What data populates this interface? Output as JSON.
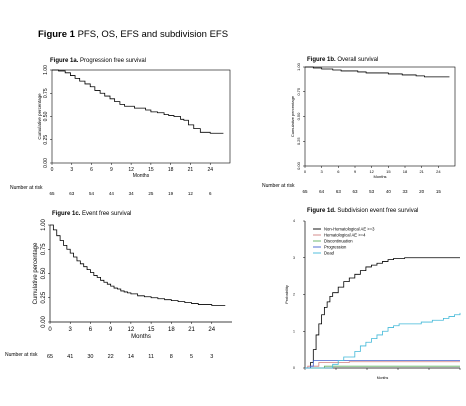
{
  "figure": {
    "prefix": "Figure 1",
    "title": "PFS, OS, EFS and subdivision EFS"
  },
  "chart_data": [
    {
      "id": "a",
      "type": "line",
      "title_prefix": "Figure 1a.",
      "title": "Progression free survival",
      "xlabel": "Months",
      "ylabel": "Cumulative percentage",
      "xlim": [
        0,
        27
      ],
      "ylim": [
        0,
        1
      ],
      "xticks": [
        "0",
        "3",
        "6",
        "9",
        "12",
        "15",
        "18",
        "21",
        "24"
      ],
      "yticks": [
        "0.00",
        "0.25",
        "0.50",
        "0.75",
        "1.00"
      ],
      "series": [
        {
          "x": [
            0,
            1,
            2,
            2.8,
            3.5,
            4.2,
            5,
            5.8,
            6.5,
            7.3,
            8,
            8.8,
            9.5,
            10.3,
            11,
            12.5,
            13.5,
            14.2,
            15,
            16,
            17,
            17.7,
            18.5,
            19.5,
            20,
            20.7,
            21.5,
            22.5,
            24,
            26
          ],
          "y": [
            1,
            0.99,
            0.97,
            0.94,
            0.91,
            0.88,
            0.85,
            0.82,
            0.78,
            0.75,
            0.72,
            0.69,
            0.66,
            0.63,
            0.61,
            0.59,
            0.59,
            0.57,
            0.55,
            0.54,
            0.52,
            0.51,
            0.5,
            0.47,
            0.46,
            0.41,
            0.37,
            0.33,
            0.32,
            0.32
          ]
        }
      ],
      "risk_label": "Number at risk",
      "risk": [
        "65",
        "63",
        "54",
        "44",
        "34",
        "25",
        "19",
        "12",
        "6"
      ]
    },
    {
      "id": "b",
      "type": "line",
      "title_prefix": "Figure 1b.",
      "title": "Overall survival",
      "xlabel": "Months",
      "ylabel": "Cumulative percentage",
      "xlim": [
        0,
        27
      ],
      "ylim": [
        0,
        1
      ],
      "xticks": [
        "0",
        "3",
        "6",
        "9",
        "12",
        "15",
        "18",
        "21",
        "24"
      ],
      "yticks": [
        "0.00",
        "0.25",
        "0.50",
        "0.75",
        "1.00"
      ],
      "series": [
        {
          "x": [
            0,
            1.5,
            3,
            5,
            6.5,
            8,
            9.5,
            11,
            13,
            15,
            16,
            17.5,
            18.5,
            20,
            21.5,
            23,
            24,
            26
          ],
          "y": [
            1,
            0.99,
            0.98,
            0.97,
            0.96,
            0.96,
            0.95,
            0.94,
            0.94,
            0.93,
            0.93,
            0.92,
            0.92,
            0.91,
            0.9,
            0.9,
            0.9,
            0.9
          ]
        }
      ],
      "risk_label": "Number at risk",
      "risk": [
        "65",
        "64",
        "63",
        "63",
        "53",
        "40",
        "33",
        "20",
        "15"
      ]
    },
    {
      "id": "c",
      "type": "line",
      "title_prefix": "Figure 1c.",
      "title": "Event free survival",
      "xlabel": "Months",
      "ylabel": "Cumulative percentage",
      "xlim": [
        0,
        27
      ],
      "ylim": [
        0,
        1
      ],
      "xticks": [
        "0",
        "3",
        "6",
        "9",
        "12",
        "15",
        "18",
        "21",
        "24"
      ],
      "yticks": [
        "0.00",
        "0.25",
        "0.50",
        "0.75",
        "1.00"
      ],
      "series": [
        {
          "x": [
            0,
            0.5,
            1,
            1.5,
            2,
            2.5,
            3,
            3.5,
            4,
            4.5,
            5,
            5.5,
            6,
            6.5,
            7,
            7.5,
            8,
            8.5,
            9,
            9.5,
            10,
            10.5,
            11,
            11.5,
            12,
            13,
            14,
            15,
            16,
            17,
            18,
            19,
            20,
            21,
            22,
            24,
            26
          ],
          "y": [
            1,
            0.95,
            0.89,
            0.84,
            0.79,
            0.75,
            0.71,
            0.67,
            0.63,
            0.6,
            0.57,
            0.54,
            0.51,
            0.48,
            0.46,
            0.43,
            0.41,
            0.39,
            0.37,
            0.35,
            0.34,
            0.32,
            0.31,
            0.3,
            0.29,
            0.27,
            0.26,
            0.25,
            0.24,
            0.23,
            0.22,
            0.21,
            0.2,
            0.19,
            0.18,
            0.17,
            0.17
          ]
        }
      ],
      "risk_label": "Number at risk",
      "risk": [
        "65",
        "41",
        "30",
        "22",
        "14",
        "11",
        "8",
        "5",
        "3"
      ]
    },
    {
      "id": "d",
      "type": "line",
      "title_prefix": "Figure 1d.",
      "title": "Subdivision event free survival",
      "xlabel": "Months",
      "ylabel": "Probability",
      "xlim": [
        0,
        28
      ],
      "ylim": [
        0,
        4
      ],
      "yticks": [
        "0",
        "1",
        "2",
        "3",
        "4"
      ],
      "xticks_count": 6,
      "series": [
        {
          "name": "Non-Hematological AE >=3",
          "color": "#000000",
          "x": [
            0,
            1,
            1.5,
            2,
            2.5,
            3,
            3.5,
            4,
            4.5,
            5,
            6,
            7,
            8,
            9,
            10,
            11,
            12,
            13,
            14,
            15,
            16,
            18,
            20,
            22,
            24,
            28
          ],
          "y": [
            0,
            0.15,
            0.5,
            0.9,
            1.2,
            1.45,
            1.65,
            1.8,
            1.95,
            2.05,
            2.2,
            2.35,
            2.45,
            2.55,
            2.65,
            2.75,
            2.8,
            2.85,
            2.9,
            2.95,
            2.98,
            3.0,
            3.0,
            3.0,
            3.0,
            3.0
          ]
        },
        {
          "name": "Hematological AE >=4",
          "color": "#d08080",
          "x": [
            0,
            0.5,
            2,
            2.5,
            8,
            28
          ],
          "y": [
            0,
            0.05,
            0.05,
            0.15,
            0.17,
            0.17
          ]
        },
        {
          "name": "Discontinuation",
          "color": "#60b060",
          "x": [
            0,
            3,
            3.5,
            28
          ],
          "y": [
            0,
            0,
            0.05,
            0.05
          ]
        },
        {
          "name": "Progression",
          "color": "#4060d0",
          "x": [
            0,
            1,
            1.5,
            28
          ],
          "y": [
            0,
            0.05,
            0.2,
            0.2
          ]
        },
        {
          "name": "Dead",
          "color": "#40b8d8",
          "x": [
            0,
            5,
            6,
            7,
            9,
            10,
            11,
            12,
            13,
            14,
            15,
            16,
            17,
            18,
            19,
            20,
            21,
            22,
            23,
            24,
            25,
            26,
            27,
            28
          ],
          "y": [
            0,
            0.1,
            0.2,
            0.3,
            0.45,
            0.6,
            0.7,
            0.8,
            0.9,
            1.0,
            1.1,
            1.15,
            1.2,
            1.2,
            1.2,
            1.2,
            1.25,
            1.25,
            1.3,
            1.3,
            1.35,
            1.4,
            1.45,
            1.5
          ]
        }
      ]
    }
  ]
}
